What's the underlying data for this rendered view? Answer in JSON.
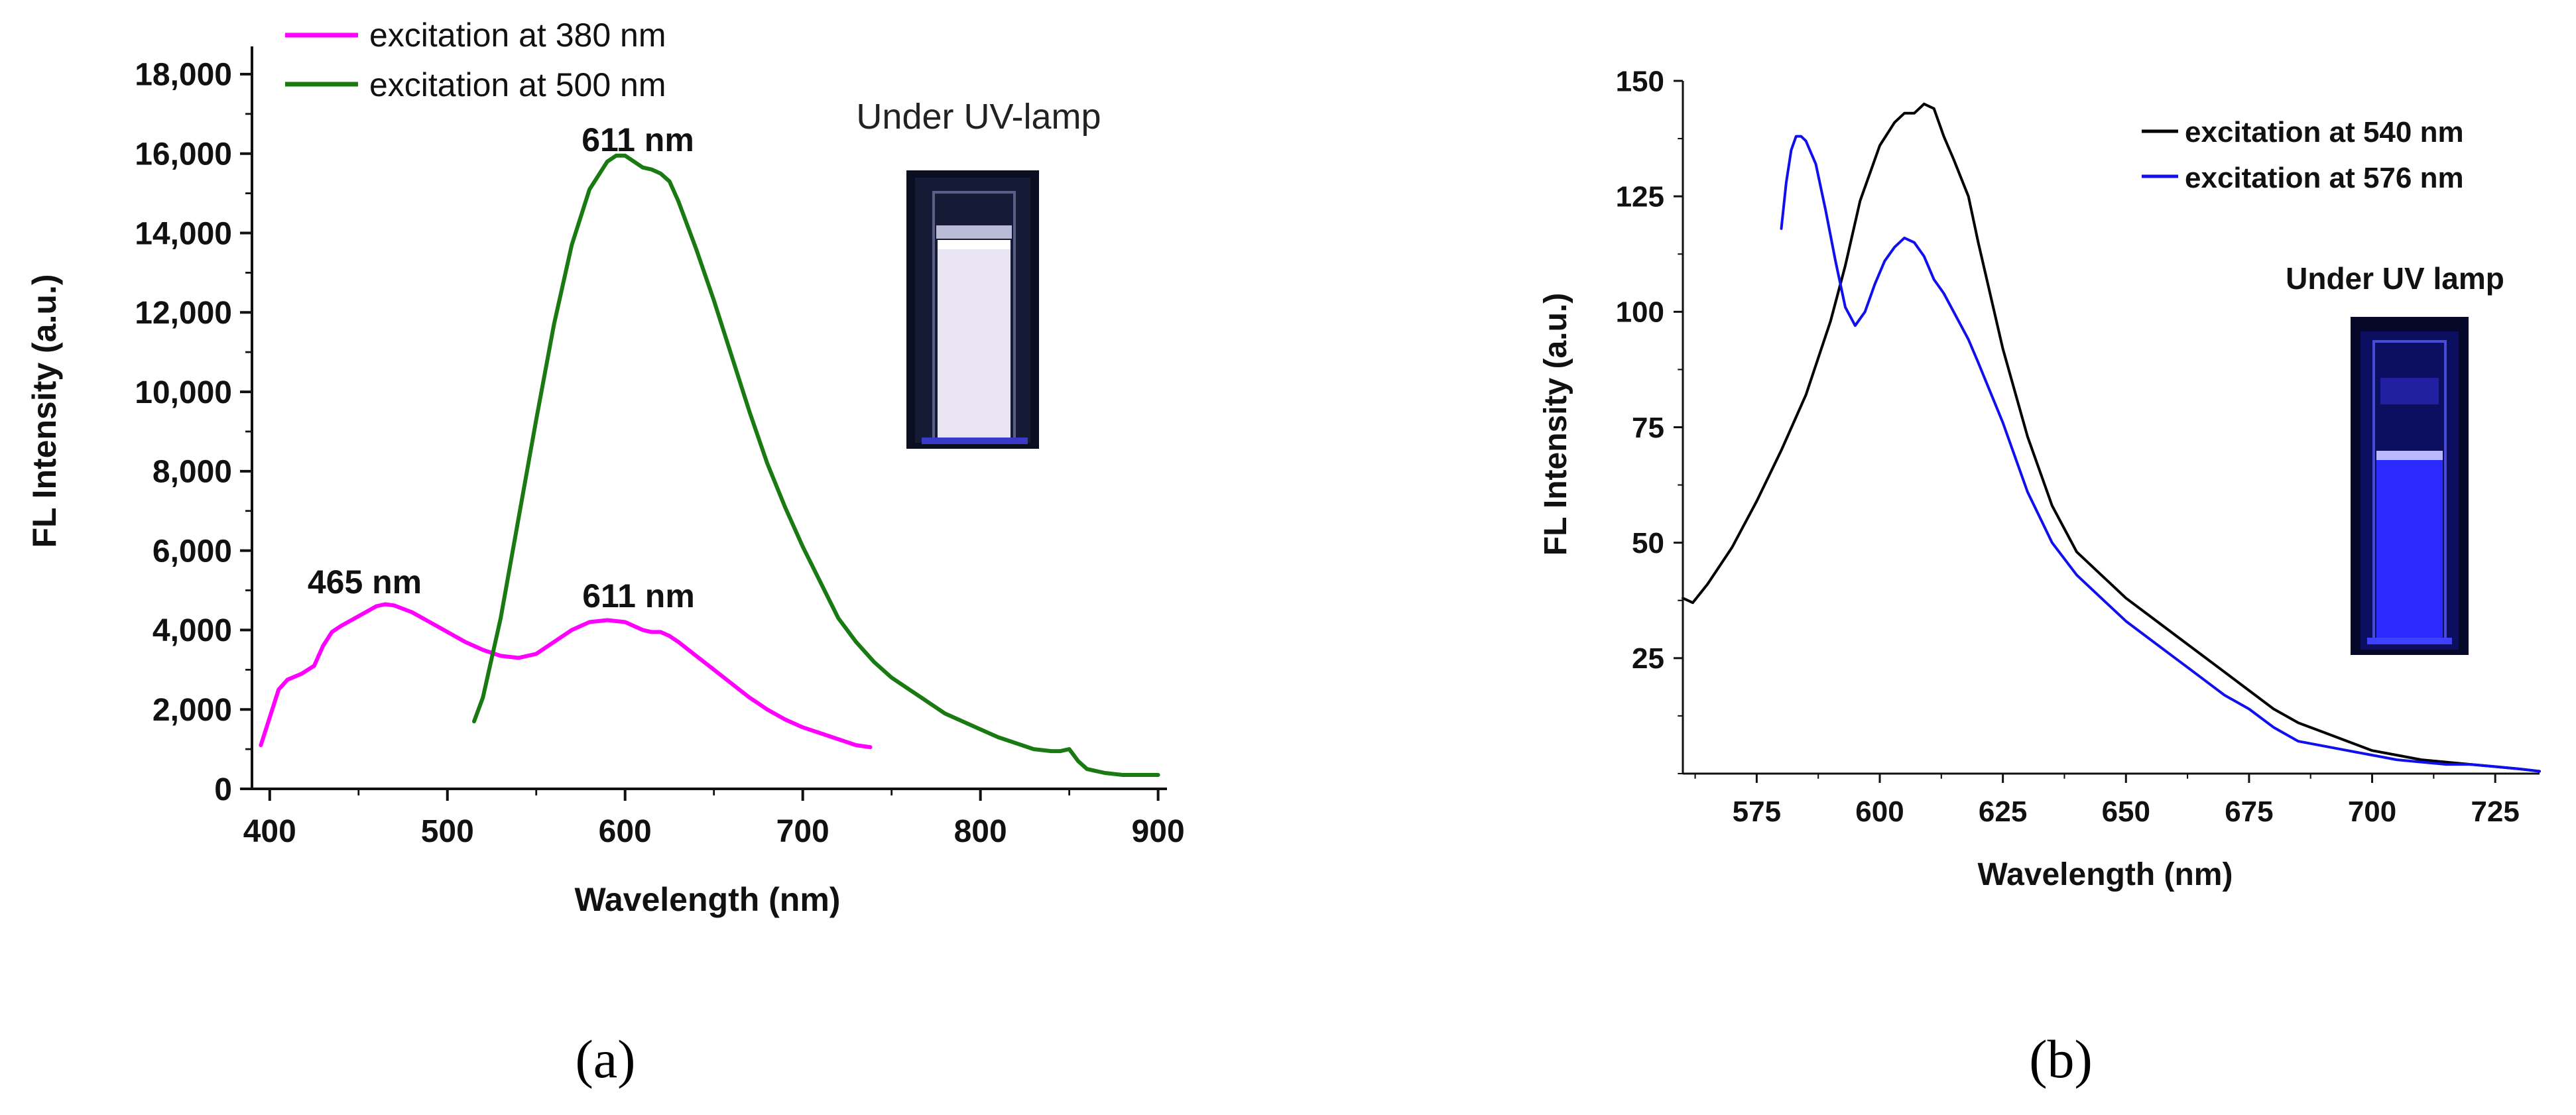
{
  "panel_a": {
    "caption": "(a)",
    "inset_label": "Under UV-lamp",
    "peak_labels": [
      "611 nm",
      "465 nm",
      "611 nm"
    ]
  },
  "panel_b": {
    "caption": "(b)",
    "inset_label": "Under UV lamp"
  },
  "colors": {
    "series_380": "#ff00ff",
    "series_500": "#1a7a12",
    "series_540": "#000000",
    "series_576": "#1010ee",
    "vial_a_glow": "#e8e4f2",
    "vial_b_glow": "#2a2aff"
  },
  "chart_data": [
    {
      "type": "line",
      "title": "",
      "xlabel": "Wavelength (nm)",
      "ylabel": "FL Intensity (a.u.)",
      "xlim": [
        390,
        905
      ],
      "ylim": [
        0,
        18700
      ],
      "xticks": [
        400,
        500,
        600,
        700,
        800,
        900
      ],
      "xtick_labels": [
        "400",
        "500",
        "600",
        "700",
        "800",
        "900"
      ],
      "yticks": [
        0,
        2000,
        4000,
        6000,
        8000,
        10000,
        12000,
        14000,
        16000,
        18000
      ],
      "ytick_labels": [
        "0",
        "2,000",
        "4,000",
        "6,000",
        "8,000",
        "10,000",
        "12,000",
        "14,000",
        "16,000",
        "18,000"
      ],
      "grid": false,
      "legend": "top-left",
      "series": [
        {
          "name": "excitation at 380 nm",
          "x": [
            395,
            400,
            405,
            410,
            418,
            425,
            430,
            435,
            440,
            450,
            460,
            465,
            470,
            480,
            490,
            500,
            510,
            520,
            530,
            540,
            550,
            560,
            570,
            580,
            590,
            600,
            610,
            615,
            620,
            625,
            630,
            640,
            650,
            660,
            670,
            680,
            690,
            700,
            710,
            720,
            730,
            738
          ],
          "values": [
            1100,
            1800,
            2500,
            2750,
            2900,
            3100,
            3600,
            3950,
            4100,
            4350,
            4600,
            4650,
            4620,
            4450,
            4200,
            3950,
            3700,
            3500,
            3350,
            3300,
            3400,
            3700,
            4000,
            4200,
            4250,
            4200,
            4000,
            3950,
            3950,
            3850,
            3700,
            3350,
            3000,
            2650,
            2300,
            2000,
            1750,
            1550,
            1400,
            1250,
            1100,
            1050
          ]
        },
        {
          "name": "excitation at 500 nm",
          "x": [
            515,
            520,
            530,
            540,
            550,
            560,
            570,
            580,
            590,
            595,
            600,
            605,
            610,
            615,
            620,
            625,
            630,
            640,
            650,
            660,
            670,
            680,
            690,
            700,
            710,
            720,
            730,
            740,
            750,
            760,
            770,
            780,
            790,
            800,
            810,
            820,
            830,
            840,
            845,
            850,
            855,
            860,
            870,
            880,
            890,
            900
          ],
          "values": [
            1700,
            2300,
            4300,
            6800,
            9300,
            11700,
            13700,
            15100,
            15800,
            15950,
            15950,
            15800,
            15650,
            15600,
            15500,
            15300,
            14800,
            13600,
            12300,
            10900,
            9500,
            8200,
            7100,
            6100,
            5200,
            4300,
            3700,
            3200,
            2800,
            2500,
            2200,
            1900,
            1700,
            1500,
            1300,
            1150,
            1000,
            950,
            950,
            1000,
            700,
            500,
            400,
            350,
            350,
            350
          ]
        }
      ],
      "annotations": [
        "611 nm",
        "465 nm",
        "611 nm"
      ]
    },
    {
      "type": "line",
      "title": "",
      "xlabel": "Wavelength (nm)",
      "ylabel": "FL Intensity (a.u.)",
      "xlim": [
        560,
        734
      ],
      "ylim": [
        0,
        150
      ],
      "xticks": [
        575,
        600,
        625,
        650,
        675,
        700,
        725
      ],
      "xtick_labels": [
        "575",
        "600",
        "625",
        "650",
        "675",
        "700",
        "725"
      ],
      "yticks": [
        25,
        50,
        75,
        100,
        125,
        150
      ],
      "ytick_labels": [
        "25",
        "50",
        "75",
        "100",
        "125",
        "150"
      ],
      "grid": false,
      "legend": "top-right",
      "series": [
        {
          "name": "excitation at 540 nm",
          "x": [
            560,
            562,
            565,
            570,
            575,
            580,
            585,
            590,
            593,
            596,
            600,
            603,
            605,
            607,
            609,
            611,
            613,
            615,
            618,
            620,
            625,
            630,
            635,
            640,
            645,
            650,
            655,
            660,
            665,
            670,
            675,
            680,
            685,
            690,
            695,
            700,
            705,
            710,
            715,
            720,
            725,
            730,
            734
          ],
          "values": [
            38,
            37,
            41,
            49,
            59,
            70,
            82,
            98,
            110,
            124,
            136,
            141,
            143,
            143,
            145,
            144,
            138,
            133,
            125,
            115,
            92,
            73,
            58,
            48,
            43,
            38,
            34,
            30,
            26,
            22,
            18,
            14,
            11,
            9,
            7,
            5,
            4,
            3,
            2.5,
            2,
            1.5,
            1,
            0.5
          ]
        },
        {
          "name": "excitation at 576 nm",
          "x": [
            580,
            581,
            582,
            583,
            584,
            585,
            587,
            589,
            591,
            593,
            595,
            597,
            599,
            601,
            603,
            605,
            607,
            609,
            611,
            613,
            615,
            618,
            620,
            625,
            630,
            635,
            640,
            645,
            650,
            655,
            660,
            665,
            670,
            675,
            680,
            685,
            690,
            695,
            700,
            705,
            710,
            715,
            720,
            725,
            730,
            734
          ],
          "values": [
            118,
            128,
            135,
            138,
            138,
            137,
            132,
            122,
            111,
            101,
            97,
            100,
            106,
            111,
            114,
            116,
            115,
            112,
            107,
            104,
            100,
            94,
            89,
            76,
            61,
            50,
            43,
            38,
            33,
            29,
            25,
            21,
            17,
            14,
            10,
            7,
            6,
            5,
            4,
            3,
            2.5,
            2,
            2,
            1.5,
            1,
            0.5
          ]
        }
      ]
    }
  ]
}
